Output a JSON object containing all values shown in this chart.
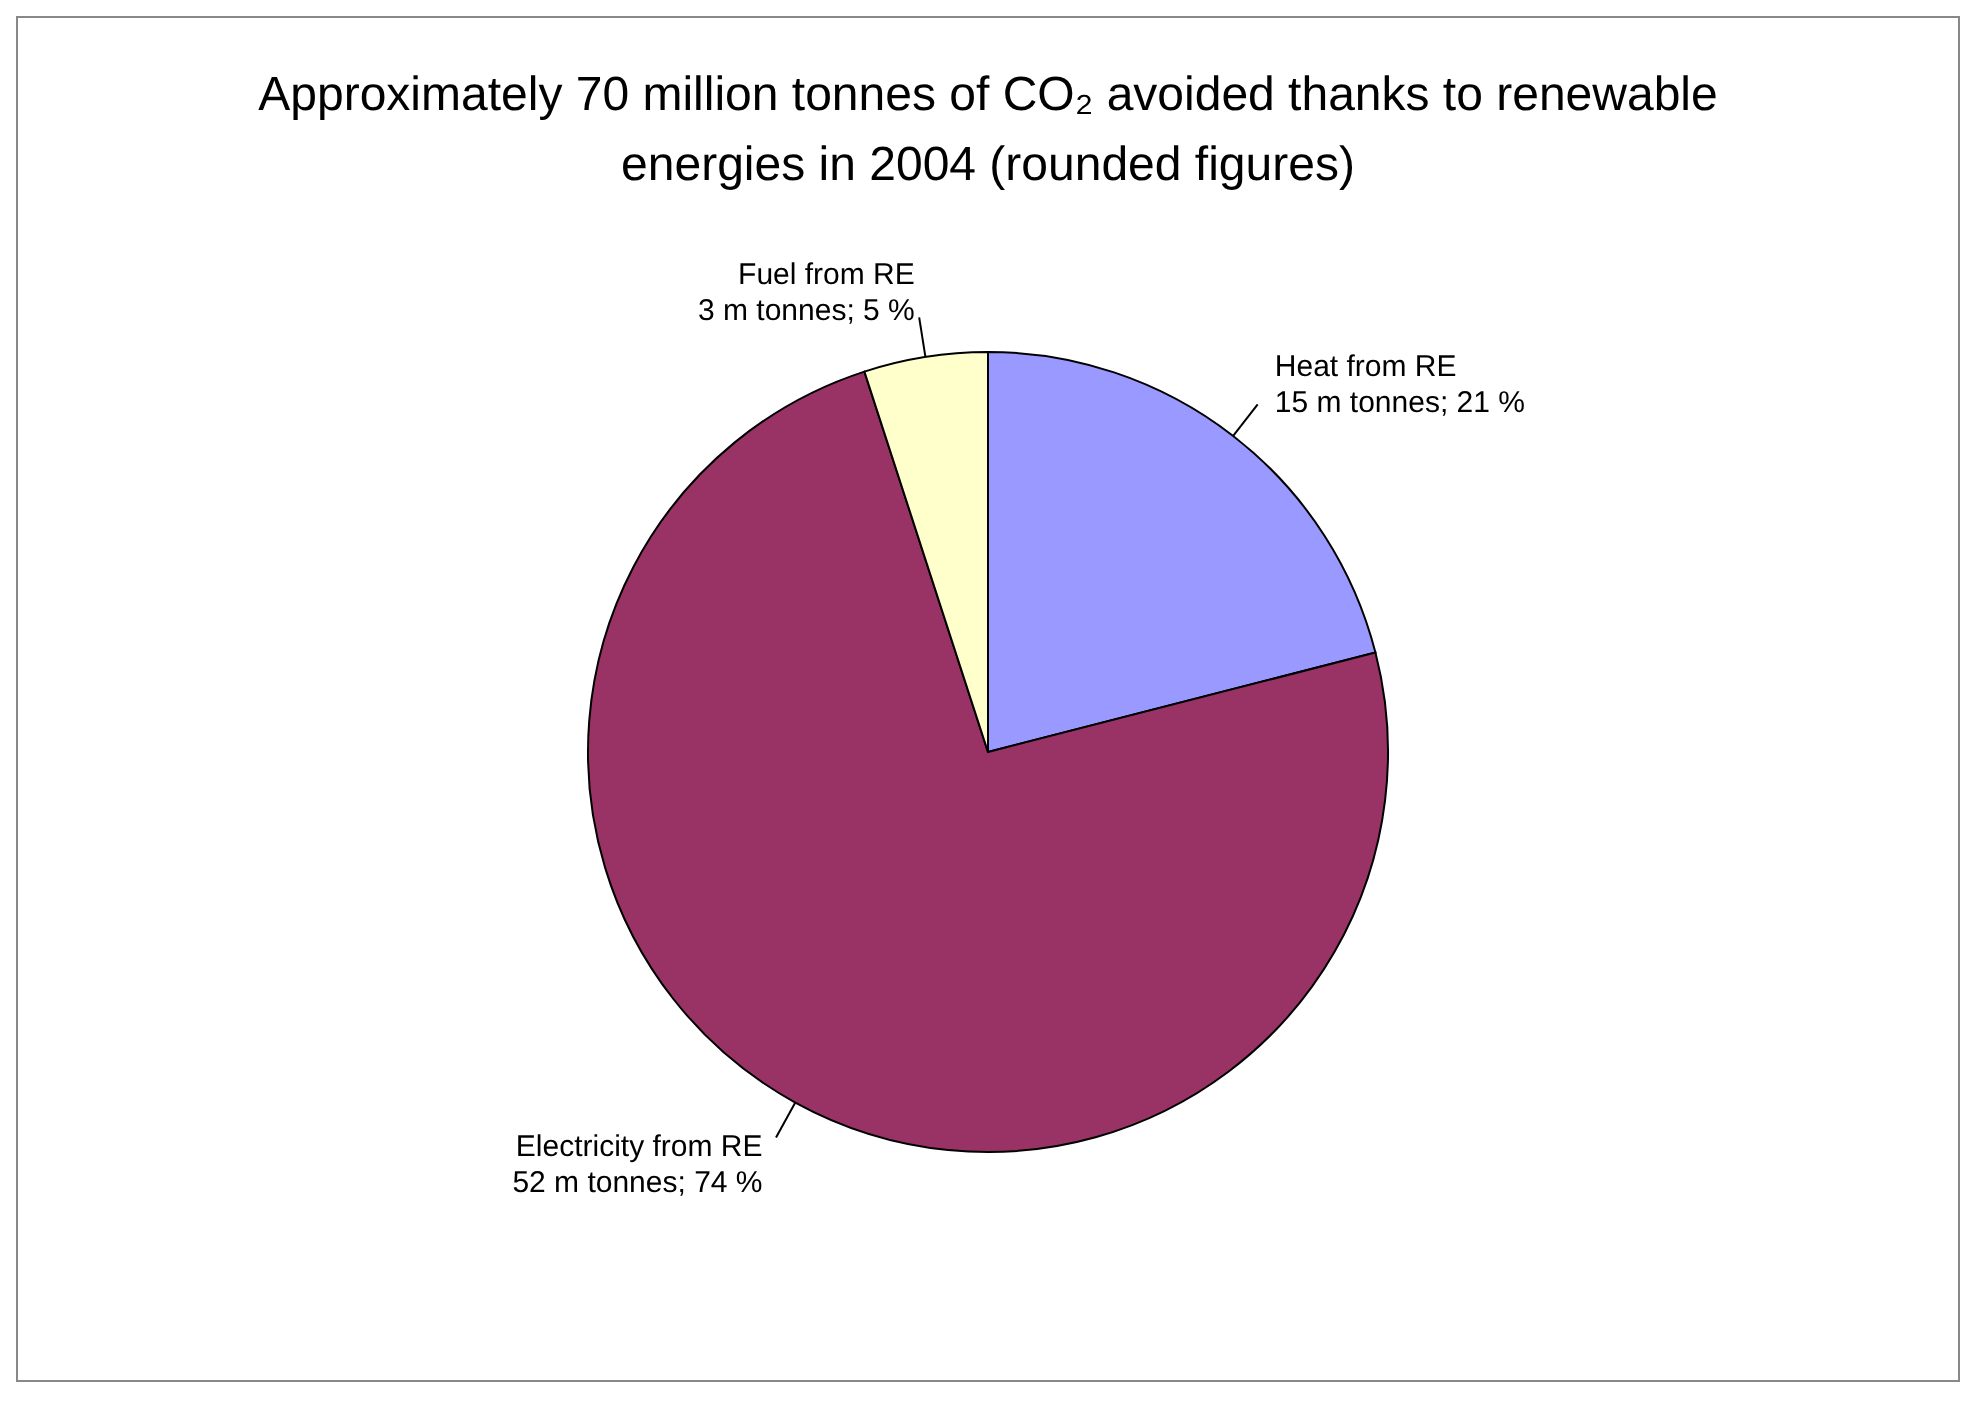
{
  "chart_data": {
    "type": "pie",
    "title": "Approximately 70 million tonnes of CO₂ avoided thanks to renewable energies in 2004 (rounded figures)",
    "categories": [
      "Heat from RE",
      "Electricity from RE",
      "Fuel from RE"
    ],
    "values": [
      21,
      74,
      5
    ],
    "colors": [
      "#9999ff",
      "#993366",
      "#ffffcc"
    ],
    "value_labels": [
      "15 m tonnes; 21 %",
      "52 m tonnes; 74 %",
      "3 m tonnes; 5 %"
    ],
    "legend": false
  }
}
